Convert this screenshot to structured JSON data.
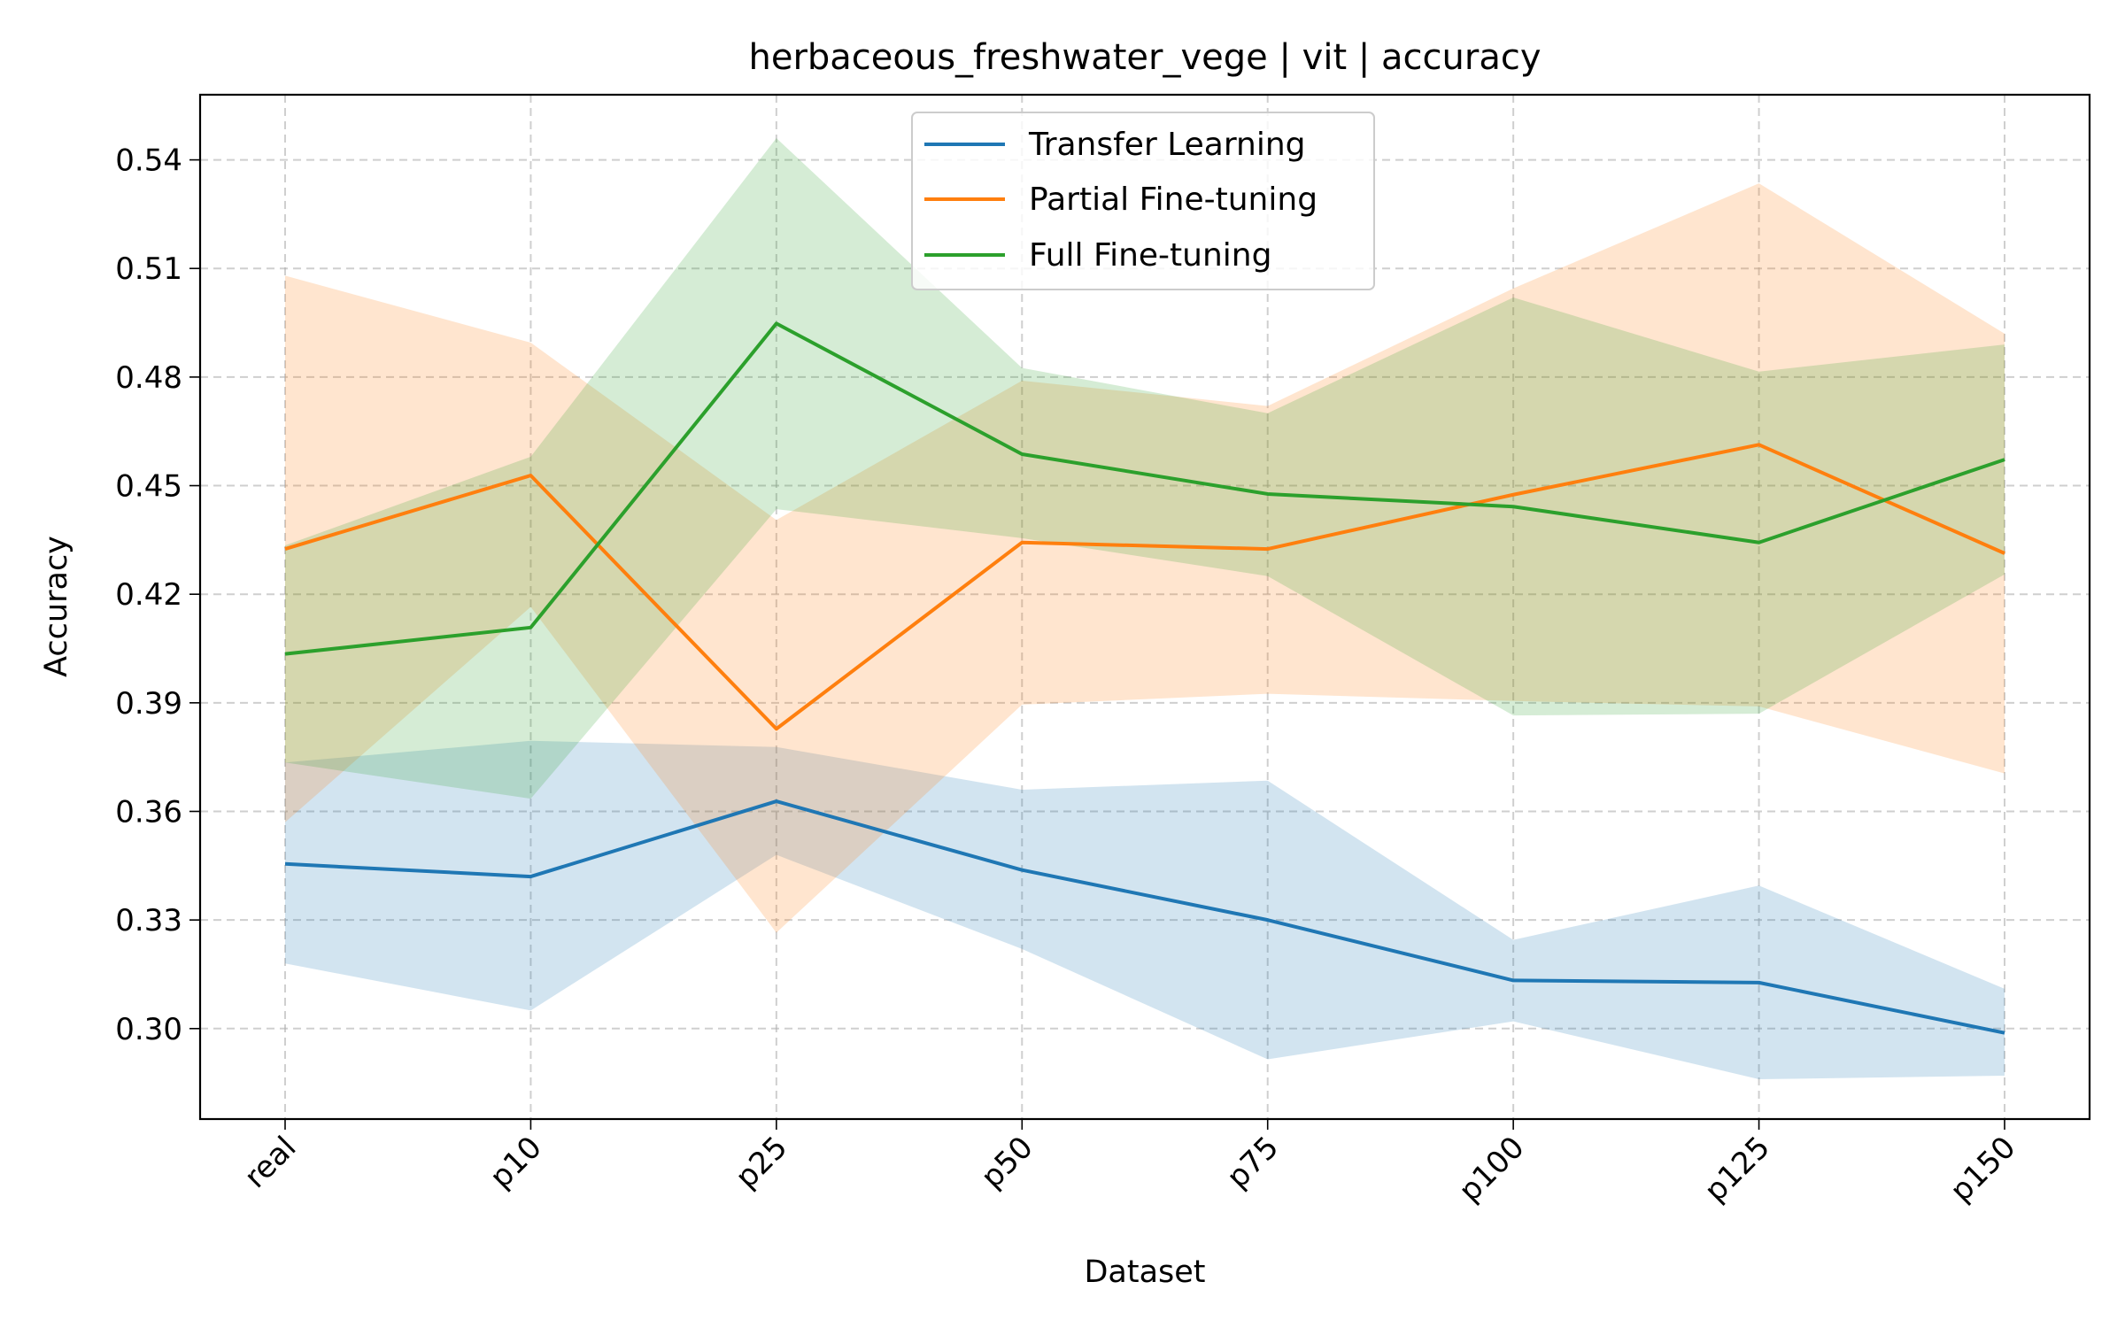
{
  "chart_data": {
    "type": "line",
    "title": "herbaceous_freshwater_vege | vit | accuracy",
    "xlabel": "Dataset",
    "ylabel": "Accuracy",
    "categories": [
      "real",
      "p10",
      "p25",
      "p50",
      "p75",
      "p100",
      "p125",
      "p150"
    ],
    "ylim": [
      0.275,
      0.558
    ],
    "yticks": [
      0.3,
      0.33,
      0.36,
      0.39,
      0.42,
      0.45,
      0.48,
      0.51,
      0.54
    ],
    "ytick_labels": [
      "0.30",
      "0.33",
      "0.36",
      "0.39",
      "0.42",
      "0.45",
      "0.48",
      "0.51",
      "0.54"
    ],
    "grid": true,
    "legend_position": "upper-center",
    "series": [
      {
        "name": "Transfer Learning",
        "color": "#1f77b4",
        "values": [
          0.3455,
          0.342,
          0.3628,
          0.3438,
          0.33,
          0.3133,
          0.3127,
          0.2988
        ],
        "lower": [
          0.318,
          0.305,
          0.348,
          0.322,
          0.2915,
          0.302,
          0.286,
          0.287
        ],
        "upper": [
          0.3735,
          0.3795,
          0.3778,
          0.366,
          0.3685,
          0.3245,
          0.3395,
          0.311
        ]
      },
      {
        "name": "Partial Fine-tuning",
        "color": "#ff7f0e",
        "values": [
          0.4325,
          0.4528,
          0.3828,
          0.4343,
          0.4325,
          0.4475,
          0.4613,
          0.4313
        ],
        "lower": [
          0.357,
          0.4165,
          0.3265,
          0.3895,
          0.3925,
          0.3905,
          0.389,
          0.3705
        ],
        "upper": [
          0.508,
          0.4895,
          0.4405,
          0.479,
          0.472,
          0.5045,
          0.5335,
          0.492
        ]
      },
      {
        "name": "Full Fine-tuning",
        "color": "#2ca02c",
        "values": [
          0.4035,
          0.4108,
          0.4948,
          0.4587,
          0.4477,
          0.4442,
          0.4343,
          0.4572
        ],
        "lower": [
          0.3735,
          0.3635,
          0.4435,
          0.4355,
          0.425,
          0.3865,
          0.387,
          0.4255
        ],
        "upper": [
          0.4335,
          0.458,
          0.546,
          0.4825,
          0.47,
          0.502,
          0.4815,
          0.489
        ]
      }
    ]
  }
}
